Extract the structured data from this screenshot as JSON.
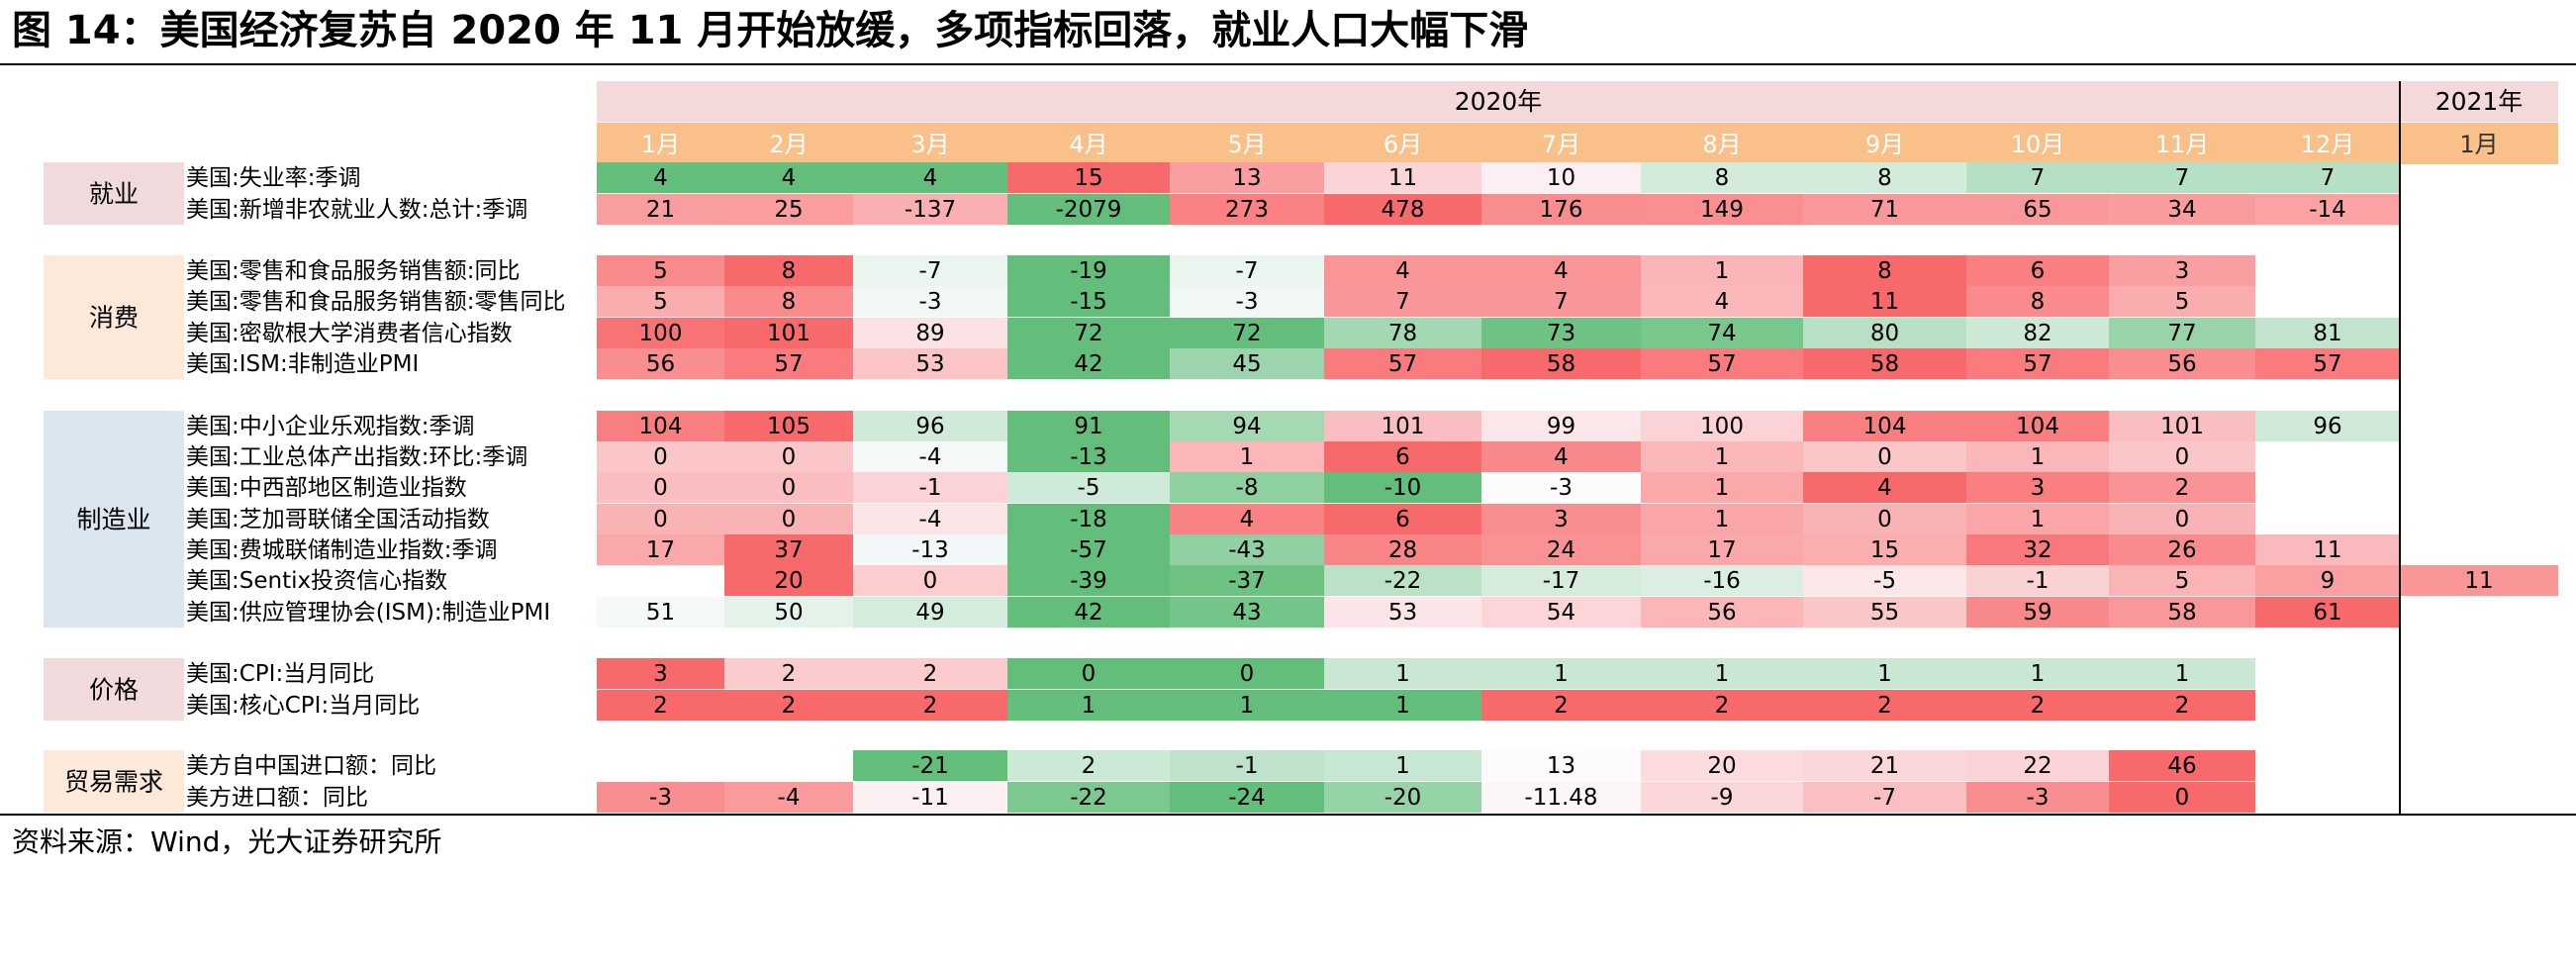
{
  "title": "图 14：美国经济复苏自 2020 年 11 月开始放缓，多项指标回落，就业人口大幅下滑",
  "source": "资料来源：Wind，光大证券研究所",
  "colors": {
    "year_header": "#f3d9d9",
    "month_header": "#f9c08a",
    "month_text": "#ffffff",
    "group_jiuye": "#f1dadb",
    "group_xiaofei": "#fde9d9",
    "group_zhizao": "#dce6f1",
    "group_jiage": "#f1dadb",
    "group_maoyi": "#fde9d9",
    "scale_high": "#f8696b",
    "scale_mid": "#fcfcff",
    "scale_low": "#63be7b"
  },
  "chart_data": {
    "type": "table",
    "years": [
      {
        "label": "2020年",
        "span": 12
      },
      {
        "label": "2021年",
        "span": 1
      }
    ],
    "months": [
      "1月",
      "2月",
      "3月",
      "4月",
      "5月",
      "6月",
      "7月",
      "8月",
      "9月",
      "10月",
      "11月",
      "12月",
      "1月"
    ],
    "groups": [
      {
        "label": "就业",
        "color": "group_jiuye",
        "rows": [
          {
            "label": "美国:失业率:季调",
            "values": [
              "4",
              "4",
              "4",
              "15",
              "13",
              "11",
              "10",
              "8",
              "8",
              "7",
              "7",
              "7",
              null
            ]
          },
          {
            "label": "美国:新增非农就业人数:总计:季调",
            "values": [
              "21",
              "25",
              "-137",
              "-2079",
              "273",
              "478",
              "176",
              "149",
              "71",
              "65",
              "34",
              "-14",
              null
            ]
          }
        ]
      },
      {
        "label": "消费",
        "color": "group_xiaofei",
        "rows": [
          {
            "label": "美国:零售和食品服务销售额:同比",
            "values": [
              "5",
              "8",
              "-7",
              "-19",
              "-7",
              "4",
              "4",
              "1",
              "8",
              "6",
              "3",
              null,
              null
            ]
          },
          {
            "label": "美国:零售和食品服务销售额:零售同比",
            "values": [
              "5",
              "8",
              "-3",
              "-15",
              "-3",
              "7",
              "7",
              "4",
              "11",
              "8",
              "5",
              null,
              null
            ]
          },
          {
            "label": "美国:密歇根大学消费者信心指数",
            "values": [
              "100",
              "101",
              "89",
              "72",
              "72",
              "78",
              "73",
              "74",
              "80",
              "82",
              "77",
              "81",
              null
            ]
          },
          {
            "label": "美国:ISM:非制造业PMI",
            "values": [
              "56",
              "57",
              "53",
              "42",
              "45",
              "57",
              "58",
              "57",
              "58",
              "57",
              "56",
              "57",
              null
            ]
          }
        ]
      },
      {
        "label": "制造业",
        "color": "group_zhizao",
        "rows": [
          {
            "label": "美国:中小企业乐观指数:季调",
            "values": [
              "104",
              "105",
              "96",
              "91",
              "94",
              "101",
              "99",
              "100",
              "104",
              "104",
              "101",
              "96",
              null
            ]
          },
          {
            "label": "美国:工业总体产出指数:环比:季调",
            "values": [
              "0",
              "0",
              "-4",
              "-13",
              "1",
              "6",
              "4",
              "1",
              "0",
              "1",
              "0",
              null,
              null
            ]
          },
          {
            "label": "美国:中西部地区制造业指数",
            "values": [
              "0",
              "0",
              "-1",
              "-5",
              "-8",
              "-10",
              "-3",
              "1",
              "4",
              "3",
              "2",
              null,
              null
            ]
          },
          {
            "label": "美国:芝加哥联储全国活动指数",
            "values": [
              "0",
              "0",
              "-4",
              "-18",
              "4",
              "6",
              "3",
              "1",
              "0",
              "1",
              "0",
              null,
              null
            ]
          },
          {
            "label": "美国:费城联储制造业指数:季调",
            "values": [
              "17",
              "37",
              "-13",
              "-57",
              "-43",
              "28",
              "24",
              "17",
              "15",
              "32",
              "26",
              "11",
              null
            ]
          },
          {
            "label": "美国:Sentix投资信心指数",
            "values": [
              null,
              "20",
              "0",
              "-39",
              "-37",
              "-22",
              "-17",
              "-16",
              "-5",
              "-1",
              "5",
              "9",
              "11"
            ]
          },
          {
            "label": "美国:供应管理协会(ISM):制造业PMI",
            "values": [
              "51",
              "50",
              "49",
              "42",
              "43",
              "53",
              "54",
              "56",
              "55",
              "59",
              "58",
              "61",
              null
            ]
          }
        ]
      },
      {
        "label": "价格",
        "color": "group_jiage",
        "rows": [
          {
            "label": "美国:CPI:当月同比",
            "values": [
              "3",
              "2",
              "2",
              "0",
              "0",
              "1",
              "1",
              "1",
              "1",
              "1",
              "1",
              null,
              null
            ]
          },
          {
            "label": "美国:核心CPI:当月同比",
            "values": [
              "2",
              "2",
              "2",
              "1",
              "1",
              "1",
              "2",
              "2",
              "2",
              "2",
              "2",
              null,
              null
            ]
          }
        ]
      },
      {
        "label": "贸易需求",
        "color": "group_maoyi",
        "rows": [
          {
            "label": "美方自中国进口额：同比",
            "values": [
              null,
              null,
              "-21",
              "2",
              "-1",
              "1",
              "13",
              "20",
              "21",
              "22",
              "46",
              null,
              null
            ]
          },
          {
            "label": "美方进口额：同比",
            "values": [
              "-3",
              "-4",
              "-11",
              "-22",
              "-24",
              "-20",
              "-11.48",
              "-9",
              "-7",
              "-3",
              "0",
              null,
              null
            ]
          }
        ]
      }
    ]
  }
}
